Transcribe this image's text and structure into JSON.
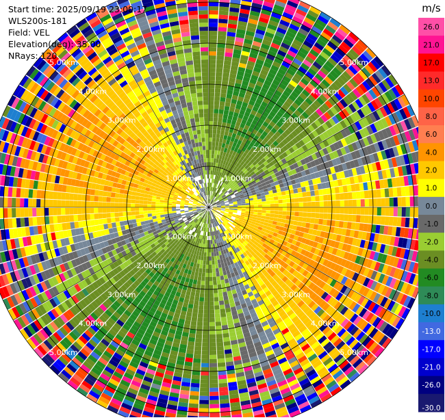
{
  "header": {
    "start_time": "Start time: 2025/09/19 23:00:17",
    "instrument": "WLS200s-181",
    "field": "Field: VEL",
    "elevation": "Elevation(deg): 35.00",
    "nrays": "NRays: 120"
  },
  "colorbar": {
    "unit": "m/s",
    "ticks": [
      "26.0",
      "21.0",
      "17.0",
      "13.0",
      "10.0",
      "8.0",
      "6.0",
      "4.0",
      "2.0",
      "1.0",
      "0.0",
      "-1.0",
      "-2.0",
      "-4.0",
      "-6.0",
      "-8.0",
      "-10.0",
      "-13.0",
      "-17.0",
      "-21.0",
      "-26.0",
      "-30.0"
    ],
    "colors": [
      "#ff4fa7",
      "#ff1493",
      "#ff0000",
      "#ff2a2a",
      "#ff4500",
      "#ff6347",
      "#ff7f50",
      "#ff9400",
      "#ffc800",
      "#ffff00",
      "#778899",
      "#696969",
      "#9acd32",
      "#6b8e23",
      "#228b22",
      "#2e8b57",
      "#1e7fd0",
      "#4169e1",
      "#0000ff",
      "#0000cd",
      "#000080",
      "#191970"
    ]
  },
  "chart_data": {
    "type": "heatmap",
    "projection": "polar PPI (plan position indicator)",
    "field": "VEL",
    "units": "m/s",
    "nrays": 120,
    "elevation_deg": 35.0,
    "range_rings_km": [
      1.0,
      2.0,
      3.0,
      4.0,
      5.0
    ],
    "ring_labels": [
      "1.00km",
      "2.00km",
      "3.00km",
      "4.00km",
      "5.00km"
    ],
    "max_range_km": 5.5,
    "azimuth_spokes_deg": [
      0,
      30,
      60,
      90,
      120,
      150,
      180,
      210,
      240,
      270,
      300,
      330
    ],
    "color_levels": [
      -30,
      -26,
      -21,
      -17,
      -13,
      -10,
      -8,
      -6,
      -4,
      -2,
      -1,
      0,
      1,
      2,
      4,
      6,
      8,
      10,
      13,
      17,
      21,
      26
    ],
    "pattern_description": "dipole wind pattern: positive velocities (yellow/orange) toward north-west and south-east, negative velocities (green/grey) toward north-east and south-west, noisy multicoloured outer ranges"
  }
}
